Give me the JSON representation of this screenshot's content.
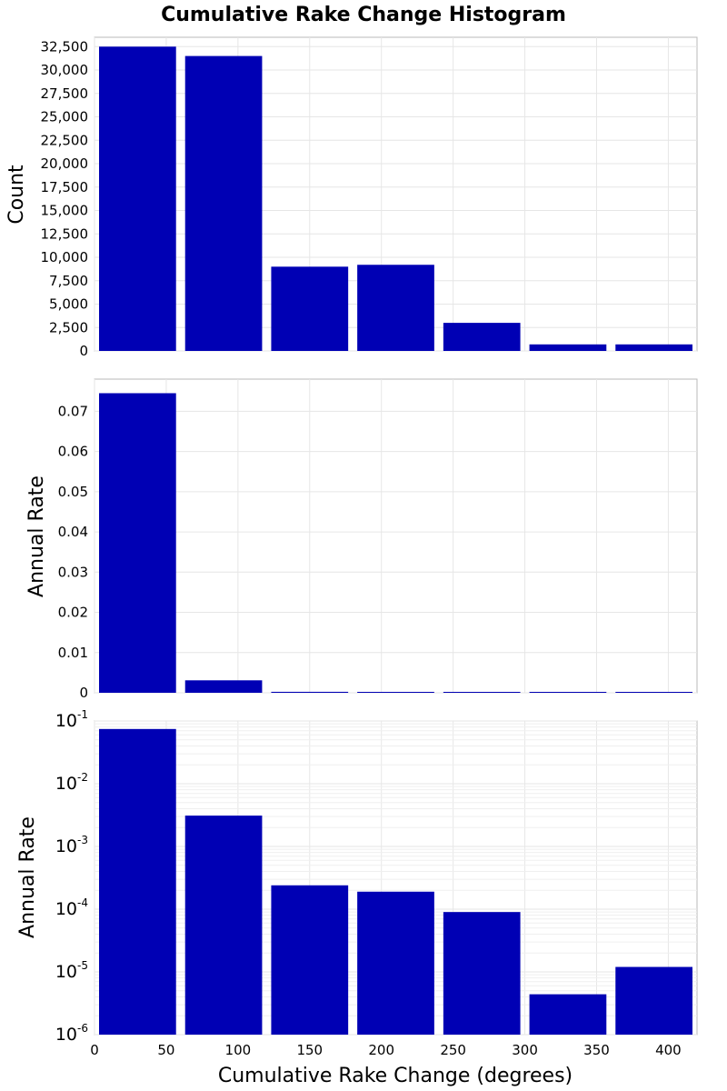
{
  "chart_data": [
    {
      "type": "bar",
      "title": "Cumulative Rake Change Histogram",
      "ylabel": "Count",
      "xlim": [
        0,
        420
      ],
      "ylim": [
        0,
        33500
      ],
      "bin_width": 60,
      "x": [
        30,
        90,
        150,
        210,
        270,
        330,
        390
      ],
      "values": [
        32500,
        31500,
        9000,
        9200,
        3000,
        700,
        700
      ],
      "y_ticks": [
        0,
        2500,
        5000,
        7500,
        10000,
        12500,
        15000,
        17500,
        20000,
        22500,
        25000,
        27500,
        30000,
        32500
      ],
      "y_tick_labels": [
        "0",
        "2,500",
        "5,000",
        "7,500",
        "10,000",
        "12,500",
        "15,000",
        "17,500",
        "20,000",
        "22,500",
        "25,000",
        "27,500",
        "30,000",
        "32,500"
      ],
      "color": "#0000b4",
      "grid": true
    },
    {
      "type": "bar",
      "ylabel": "Annual Rate",
      "xlim": [
        0,
        420
      ],
      "ylim": [
        0,
        0.078
      ],
      "bin_width": 60,
      "x": [
        30,
        90,
        150,
        210,
        270,
        330,
        390
      ],
      "values": [
        0.0745,
        0.0031,
        0.00024,
        0.00019,
        9e-05,
        4.4e-06,
        1.2e-05
      ],
      "y_ticks": [
        0,
        0.01,
        0.02,
        0.03,
        0.04,
        0.05,
        0.06,
        0.07
      ],
      "y_tick_labels": [
        "0",
        "0.01",
        "0.02",
        "0.03",
        "0.04",
        "0.05",
        "0.06",
        "0.07"
      ],
      "color": "#0000b4",
      "grid": true
    },
    {
      "type": "bar",
      "ylabel": "Annual Rate",
      "xlabel": "Cumulative Rake Change (degrees)",
      "yscale": "log",
      "xlim": [
        0,
        420
      ],
      "ylim": [
        1e-06,
        0.1
      ],
      "bin_width": 60,
      "x": [
        30,
        90,
        150,
        210,
        270,
        330,
        390
      ],
      "values": [
        0.0745,
        0.0031,
        0.00024,
        0.00019,
        9e-05,
        4.4e-06,
        1.2e-05
      ],
      "y_tick_exponents": [
        -6,
        -5,
        -4,
        -3,
        -2,
        -1
      ],
      "y_tick_base": "10",
      "x_ticks": [
        0,
        50,
        100,
        150,
        200,
        250,
        300,
        350,
        400
      ],
      "x_tick_labels": [
        "0",
        "50",
        "100",
        "150",
        "200",
        "250",
        "300",
        "350",
        "400"
      ],
      "color": "#0000b4",
      "grid": true
    }
  ]
}
